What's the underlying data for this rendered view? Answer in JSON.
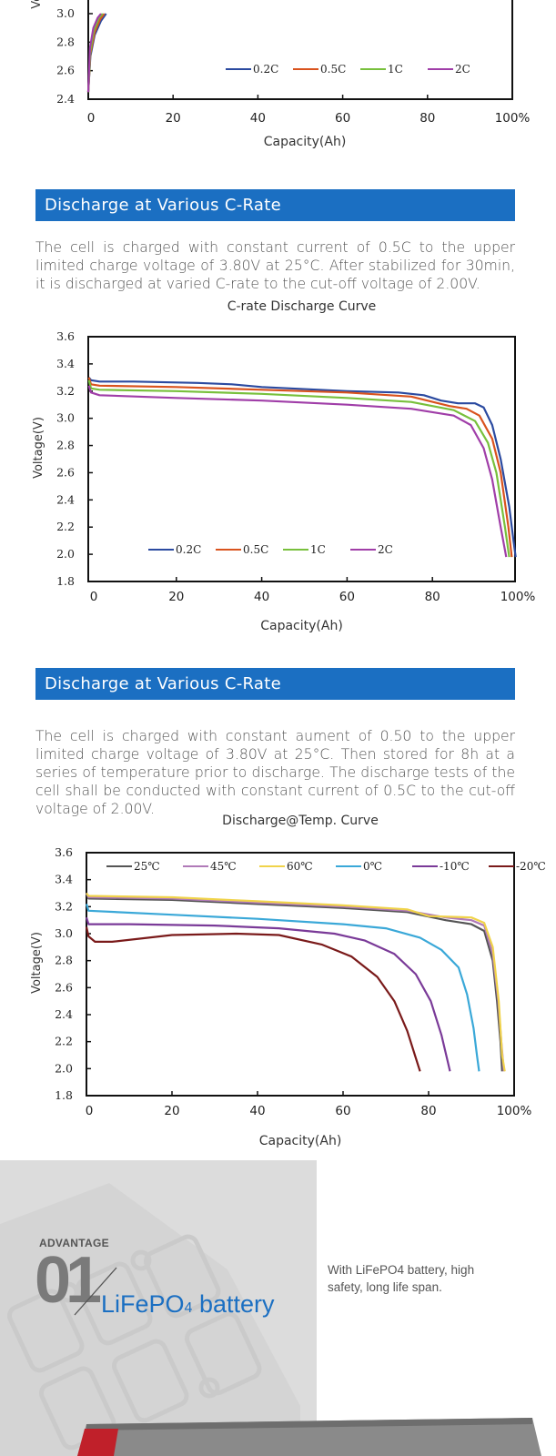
{
  "sections": [
    {
      "header": "",
      "paragraph": ""
    },
    {
      "header": "Discharge at Various  C-Rate",
      "paragraph": "The cell is charged with constant current of 0.5C to the upper limited charge voltage of 3.80V at 25°C. After stabilized for 30min, it is discharged at varied C-rate to the cut-off voltage of 2.00V."
    },
    {
      "header": "Discharge at Various  C-Rate",
      "paragraph": "The cell is charged with constant aument of 0.50 to the upper limited charge voltage of 3.80V at 25°C. Then stored for 8h at a series of temperature prior to discharge. The discharge tests of the cell shall be conducted with constant current of 0.5C to the cut-off voltage of 2.00V."
    }
  ],
  "chart_data": [
    {
      "type": "line",
      "title": "",
      "xlabel": "Capacity(Ah)",
      "ylabel": "Vol",
      "ylim": [
        2.4,
        3.0
      ],
      "xlim": [
        0,
        100
      ],
      "y_ticks": [
        "2.4",
        "2.6",
        "2.8",
        "3.0"
      ],
      "x_ticks": [
        "0",
        "20",
        "40",
        "60",
        "80",
        "100%"
      ],
      "legend_position": "bottom-right",
      "series": [
        {
          "name": "0.2C",
          "color": "#2b4aa0",
          "points": [
            [
              0,
              2.45
            ],
            [
              0.5,
              2.7
            ],
            [
              1.5,
              2.85
            ],
            [
              3,
              2.95
            ],
            [
              4.2,
              3.0
            ]
          ]
        },
        {
          "name": "0.5C",
          "color": "#d9531e",
          "points": [
            [
              0,
              2.45
            ],
            [
              0.5,
              2.72
            ],
            [
              1.5,
              2.87
            ],
            [
              2.8,
              2.96
            ],
            [
              3.8,
              3.0
            ]
          ]
        },
        {
          "name": "1C",
          "color": "#78c03c",
          "points": [
            [
              0,
              2.45
            ],
            [
              0.5,
              2.74
            ],
            [
              1.3,
              2.88
            ],
            [
              2.5,
              2.97
            ],
            [
              3.4,
              3.0
            ]
          ]
        },
        {
          "name": "2C",
          "color": "#a03ea8",
          "points": [
            [
              0,
              2.45
            ],
            [
              0.4,
              2.76
            ],
            [
              1.2,
              2.9
            ],
            [
              2.2,
              2.97
            ],
            [
              3.0,
              3.0
            ]
          ]
        }
      ]
    },
    {
      "type": "line",
      "title": "C-rate Discharge Curve",
      "xlabel": "Capacity(Ah)",
      "ylabel": "Voltage(V)",
      "ylim": [
        1.8,
        3.6
      ],
      "xlim": [
        0,
        100
      ],
      "y_ticks": [
        "1.8",
        "2.0",
        "2.2",
        "2.4",
        "2.6",
        "2.8",
        "3.0",
        "3.2",
        "3.4",
        "3.6"
      ],
      "x_ticks": [
        "0",
        "20",
        "40",
        "60",
        "80",
        "100%"
      ],
      "legend_position": "bottom-left",
      "series": [
        {
          "name": "0.2C",
          "color": "#2b4aa0",
          "points": [
            [
              -0.5,
              3.3
            ],
            [
              0,
              3.28
            ],
            [
              2,
              3.27
            ],
            [
              10,
              3.27
            ],
            [
              25,
              3.26
            ],
            [
              33,
              3.25
            ],
            [
              40,
              3.23
            ],
            [
              60,
              3.2
            ],
            [
              72,
              3.19
            ],
            [
              78,
              3.17
            ],
            [
              82,
              3.13
            ],
            [
              86,
              3.11
            ],
            [
              90,
              3.11
            ],
            [
              92,
              3.08
            ],
            [
              94,
              2.95
            ],
            [
              96,
              2.7
            ],
            [
              98,
              2.35
            ],
            [
              99,
              2.1
            ],
            [
              99.5,
              1.98
            ]
          ]
        },
        {
          "name": "0.5C",
          "color": "#d9531e",
          "points": [
            [
              -0.5,
              3.3
            ],
            [
              0,
              3.25
            ],
            [
              2,
              3.24
            ],
            [
              20,
              3.23
            ],
            [
              40,
              3.21
            ],
            [
              60,
              3.19
            ],
            [
              75,
              3.16
            ],
            [
              84,
              3.09
            ],
            [
              88,
              3.07
            ],
            [
              91,
              3.02
            ],
            [
              94,
              2.85
            ],
            [
              96,
              2.6
            ],
            [
              97.8,
              2.2
            ],
            [
              98.6,
              1.98
            ]
          ]
        },
        {
          "name": "1C",
          "color": "#78c03c",
          "points": [
            [
              -0.5,
              3.28
            ],
            [
              0,
              3.22
            ],
            [
              2,
              3.21
            ],
            [
              20,
              3.2
            ],
            [
              40,
              3.18
            ],
            [
              60,
              3.15
            ],
            [
              75,
              3.12
            ],
            [
              85,
              3.06
            ],
            [
              90,
              2.98
            ],
            [
              93,
              2.82
            ],
            [
              95,
              2.6
            ],
            [
              97,
              2.2
            ],
            [
              98,
              1.98
            ]
          ]
        },
        {
          "name": "2C",
          "color": "#a03ea8",
          "points": [
            [
              -0.5,
              3.24
            ],
            [
              0,
              3.19
            ],
            [
              2,
              3.17
            ],
            [
              20,
              3.15
            ],
            [
              40,
              3.13
            ],
            [
              60,
              3.1
            ],
            [
              75,
              3.07
            ],
            [
              85,
              3.02
            ],
            [
              89,
              2.95
            ],
            [
              92,
              2.78
            ],
            [
              94,
              2.55
            ],
            [
              96,
              2.2
            ],
            [
              97.3,
              1.98
            ]
          ]
        }
      ]
    },
    {
      "type": "line",
      "title": "Discharge@Temp. Curve",
      "xlabel": "Capacity(Ah)",
      "ylabel": "Voltage(V)",
      "ylim": [
        1.8,
        3.6
      ],
      "xlim": [
        0,
        100
      ],
      "y_ticks": [
        "1.8",
        "2.0",
        "2.2",
        "2.4",
        "2.6",
        "2.8",
        "3.0",
        "3.2",
        "3.4",
        "3.6"
      ],
      "x_ticks": [
        "0",
        "20",
        "40",
        "60",
        "80",
        "100%"
      ],
      "legend_position": "top",
      "series": [
        {
          "name": "25℃",
          "color": "#555555",
          "points": [
            [
              0,
              3.3
            ],
            [
              0.5,
              3.26
            ],
            [
              20,
              3.25
            ],
            [
              40,
              3.22
            ],
            [
              60,
              3.19
            ],
            [
              75,
              3.16
            ],
            [
              84,
              3.1
            ],
            [
              90,
              3.07
            ],
            [
              93,
              3.02
            ],
            [
              95,
              2.8
            ],
            [
              96,
              2.5
            ],
            [
              96.8,
              2.2
            ],
            [
              97.2,
              1.98
            ]
          ]
        },
        {
          "name": "45℃",
          "color": "#b07ab8",
          "points": [
            [
              0,
              3.3
            ],
            [
              0.5,
              3.27
            ],
            [
              20,
              3.26
            ],
            [
              40,
              3.23
            ],
            [
              60,
              3.2
            ],
            [
              75,
              3.17
            ],
            [
              84,
              3.12
            ],
            [
              90,
              3.1
            ],
            [
              93,
              3.06
            ],
            [
              95,
              2.85
            ],
            [
              96.3,
              2.5
            ],
            [
              97,
              2.2
            ],
            [
              97.6,
              1.98
            ]
          ]
        },
        {
          "name": "60℃",
          "color": "#f0d34a",
          "points": [
            [
              0,
              3.3
            ],
            [
              0.5,
              3.28
            ],
            [
              20,
              3.27
            ],
            [
              40,
              3.24
            ],
            [
              60,
              3.21
            ],
            [
              75,
              3.18
            ],
            [
              80,
              3.13
            ],
            [
              90,
              3.12
            ],
            [
              93,
              3.08
            ],
            [
              95,
              2.9
            ],
            [
              96.4,
              2.5
            ],
            [
              97.2,
              2.1
            ],
            [
              97.8,
              1.98
            ]
          ]
        },
        {
          "name": "0℃",
          "color": "#3aa8d8",
          "points": [
            [
              0,
              3.22
            ],
            [
              0.5,
              3.17
            ],
            [
              20,
              3.14
            ],
            [
              40,
              3.11
            ],
            [
              60,
              3.07
            ],
            [
              70,
              3.04
            ],
            [
              78,
              2.97
            ],
            [
              83,
              2.88
            ],
            [
              87,
              2.75
            ],
            [
              89,
              2.55
            ],
            [
              90.5,
              2.3
            ],
            [
              91.3,
              2.1
            ],
            [
              91.8,
              1.98
            ]
          ]
        },
        {
          "name": "-10℃",
          "color": "#7a3a98",
          "points": [
            [
              0,
              3.12
            ],
            [
              0.5,
              3.07
            ],
            [
              10,
              3.07
            ],
            [
              30,
              3.06
            ],
            [
              45,
              3.04
            ],
            [
              58,
              3.0
            ],
            [
              65,
              2.95
            ],
            [
              72,
              2.85
            ],
            [
              77,
              2.7
            ],
            [
              80.5,
              2.5
            ],
            [
              83,
              2.25
            ],
            [
              84.5,
              2.05
            ],
            [
              85,
              1.98
            ]
          ]
        },
        {
          "name": "-20℃",
          "color": "#7a1a1a",
          "points": [
            [
              0,
              3.05
            ],
            [
              0.5,
              2.98
            ],
            [
              2,
              2.94
            ],
            [
              6,
              2.94
            ],
            [
              20,
              2.99
            ],
            [
              35,
              3.0
            ],
            [
              45,
              2.99
            ],
            [
              55,
              2.92
            ],
            [
              62,
              2.83
            ],
            [
              68,
              2.68
            ],
            [
              72,
              2.5
            ],
            [
              75,
              2.28
            ],
            [
              77,
              2.08
            ],
            [
              78,
              1.98
            ]
          ]
        }
      ]
    }
  ],
  "advantage": {
    "tag": "ADVANTAGE",
    "number": "01",
    "title": "LiFePO4 battery",
    "title_main": "LiFePO",
    "title_sub": "4",
    "title_end": " battery",
    "description": "With LiFePO4 battery, high safety, long life span."
  }
}
